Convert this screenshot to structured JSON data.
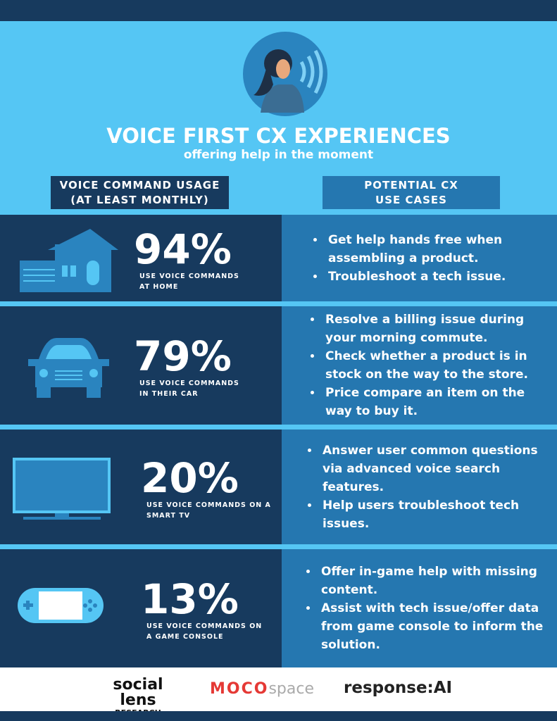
{
  "header": {
    "title": "VOICE FIRST CX EXPERIENCES",
    "subtitle": "offering help in the moment"
  },
  "columns": {
    "left": [
      "VOICE COMMAND USAGE",
      "(AT LEAST MONTHLY)"
    ],
    "right": [
      "POTENTIAL CX",
      "USE CASES"
    ]
  },
  "rows": [
    {
      "stat": "94%",
      "label": [
        "USE VOICE COMMANDS",
        "AT HOME"
      ],
      "use_cases": [
        "Get help hands free when assembling a product.",
        "Troubleshoot a tech issue."
      ]
    },
    {
      "stat": "79%",
      "label": [
        "USE VOICE COMMANDS",
        "IN THEIR CAR"
      ],
      "use_cases": [
        "Resolve a billing issue during your morning commute.",
        "Check whether a product is in stock on the way to the store.",
        "Price compare an item on the way to buy it."
      ]
    },
    {
      "stat": "20%",
      "label": [
        "USE VOICE COMMANDS ON A",
        "SMART TV"
      ],
      "use_cases": [
        "Answer user common questions via advanced voice search features.",
        "Help users troubleshoot tech issues."
      ]
    },
    {
      "stat": "13%",
      "label": [
        "USE VOICE COMMANDS ON",
        "A GAME CONSOLE"
      ],
      "use_cases": [
        "Offer in-game help with missing content.",
        "Assist with tech issue/offer data from game console to inform the solution."
      ]
    }
  ],
  "footer": {
    "logos": [
      {
        "main": "social lens",
        "sub": "RESEARCH"
      },
      {
        "main": "MOCO",
        "sub": "space"
      },
      {
        "main": "response:AI"
      }
    ]
  }
}
